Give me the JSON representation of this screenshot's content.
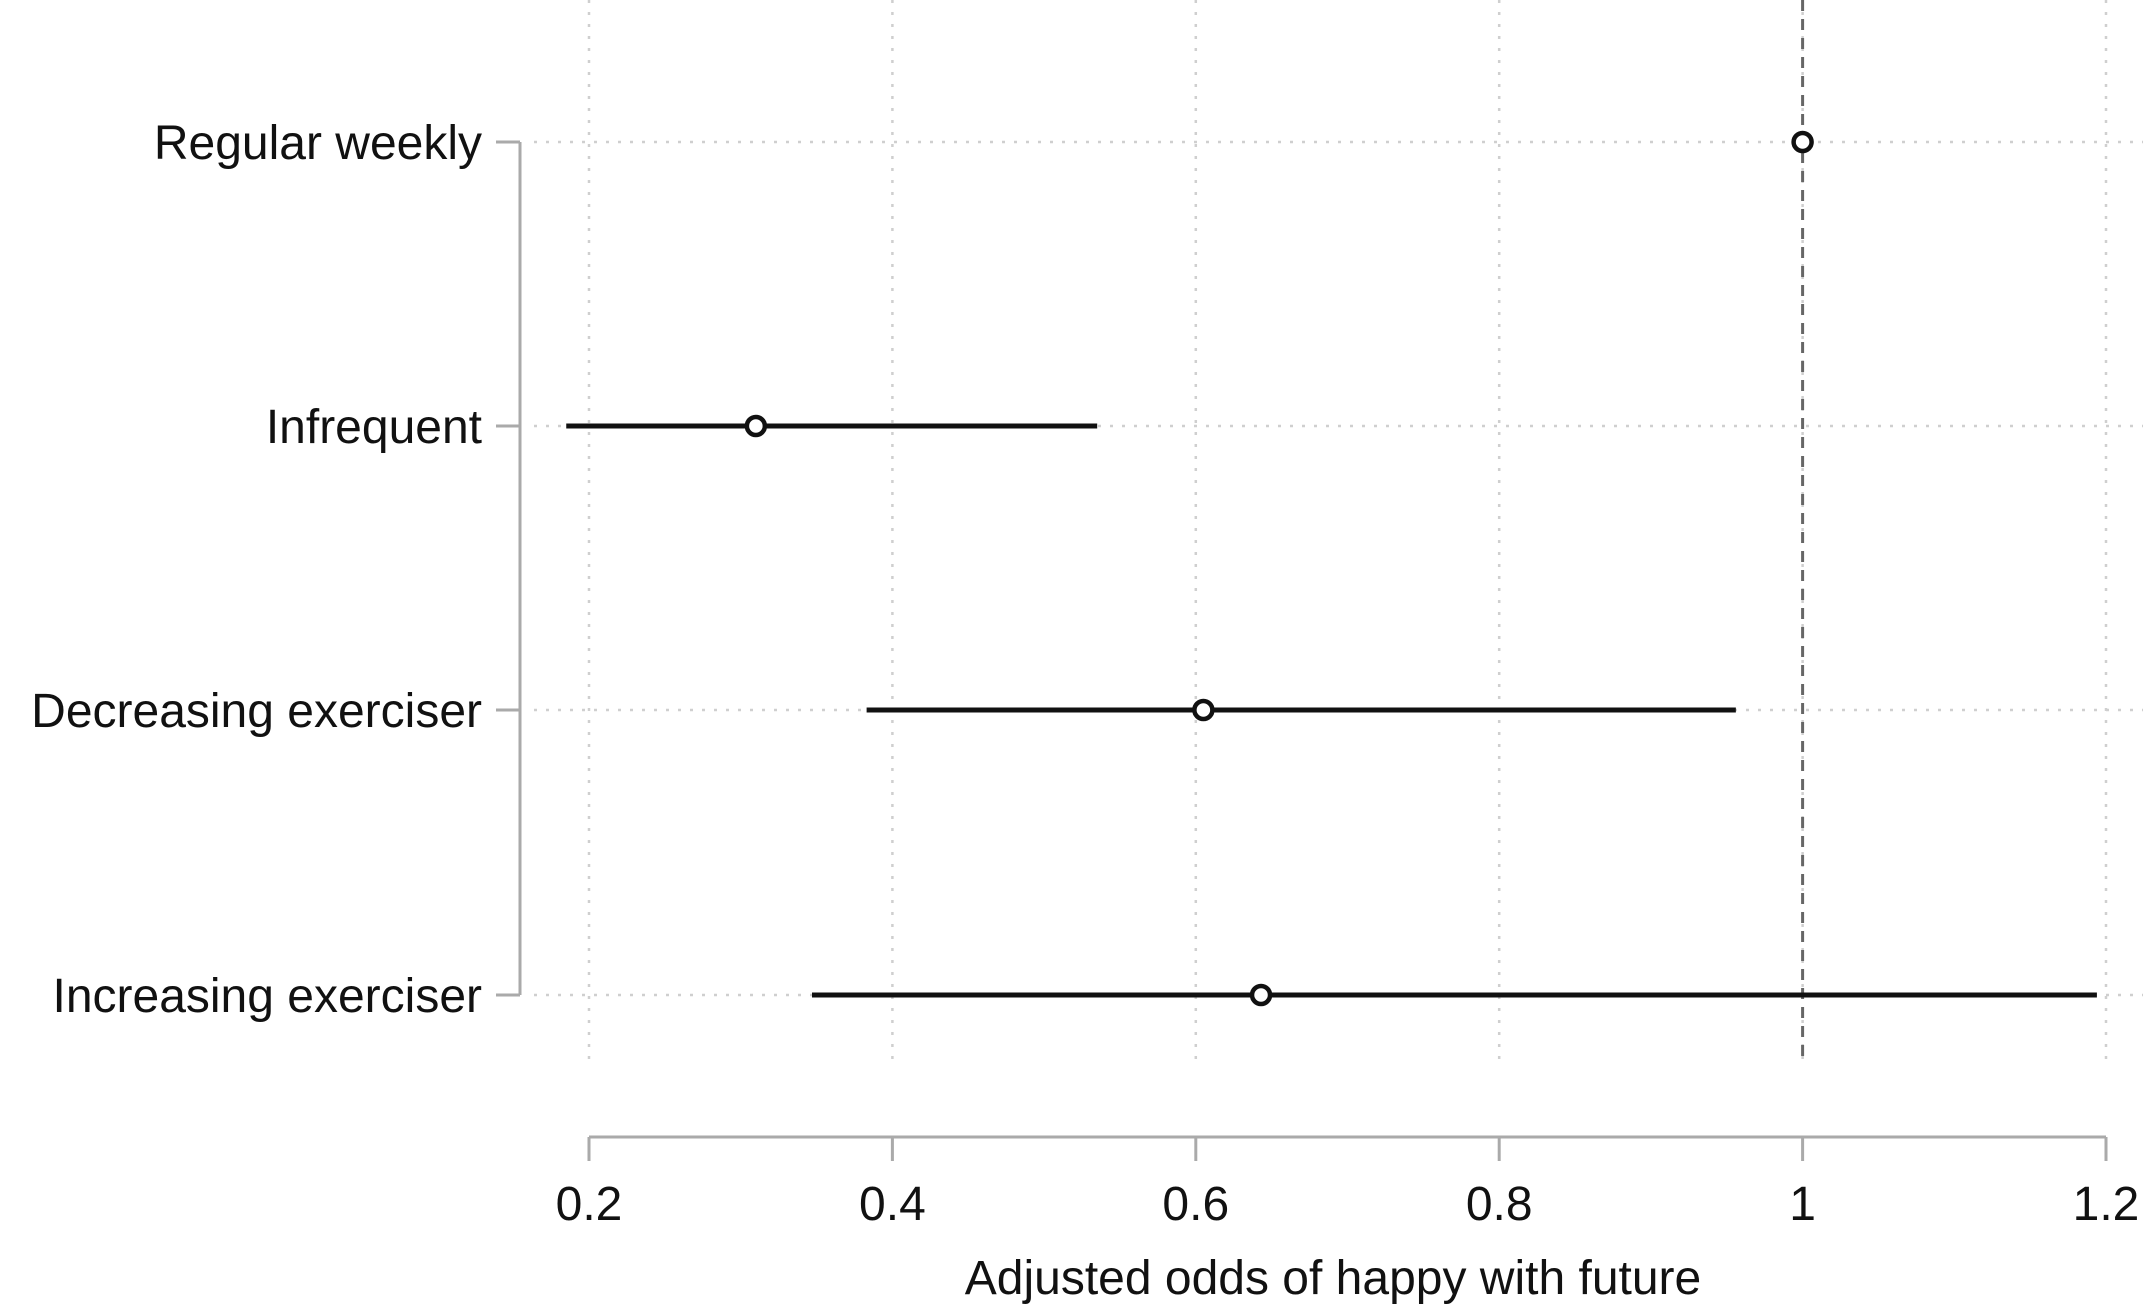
{
  "chart_data": {
    "type": "forest",
    "title": "",
    "xlabel": "Adjusted odds of happy with future",
    "ylabel": "",
    "xlim": [
      0.2,
      1.2
    ],
    "x_ticks": [
      0.2,
      0.4,
      0.6,
      0.8,
      1.0,
      1.2
    ],
    "x_tick_labels": [
      "0.2",
      "0.4",
      "0.6",
      "0.8",
      "1",
      "1.2"
    ],
    "reference_line": 1,
    "grid": "dotted",
    "categories": [
      "Regular weekly",
      "Infrequent",
      "Decreasing exerciser",
      "Increasing exerciser"
    ],
    "estimates": [
      1.0,
      0.31,
      0.605,
      0.643
    ],
    "lower_ci": [
      null,
      0.185,
      0.383,
      0.347
    ],
    "upper_ci": [
      null,
      0.535,
      0.956,
      1.194
    ]
  },
  "colors": {
    "marker": "#111111",
    "ci_line": "#111111",
    "axis": "#aaaaaa",
    "grid": "#cfcfcf",
    "reference": "#666666"
  }
}
